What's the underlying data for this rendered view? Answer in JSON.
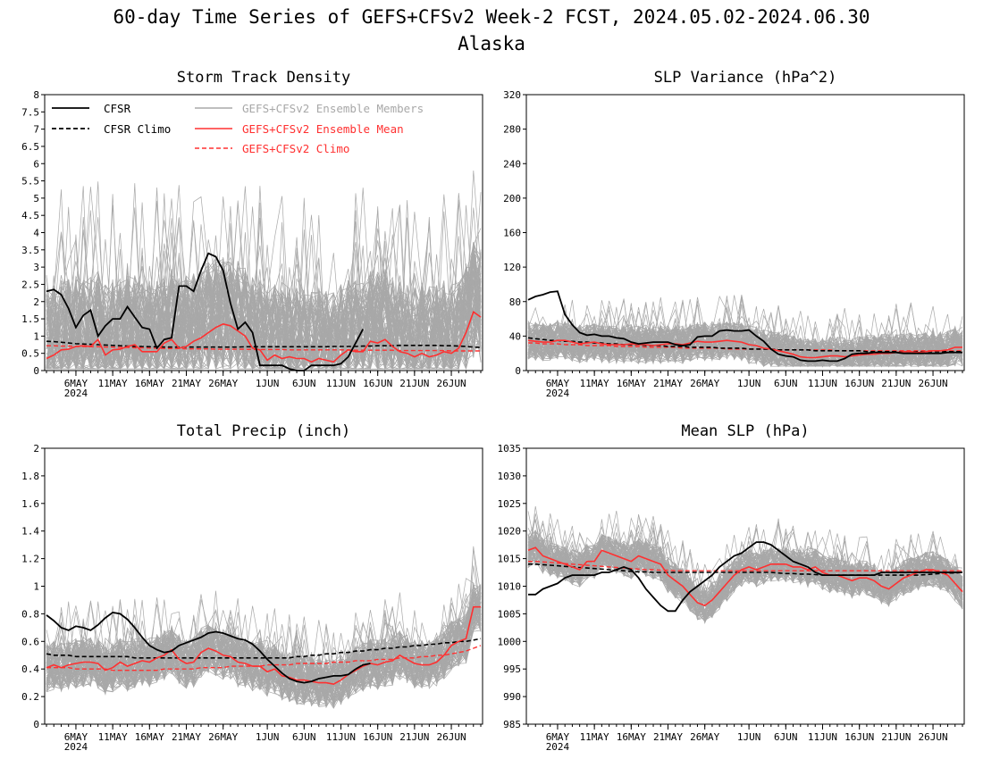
{
  "figure": {
    "title": "60-day Time Series of GEFS+CFSv2 Week-2 FCST, 2024.05.02-2024.06.30",
    "subtitle": "Alaska"
  },
  "legend": {
    "cfsr": "CFSR",
    "cfsr_climo": "CFSR Climo",
    "members": "GEFS+CFSv2 Ensemble Members",
    "mean": "GEFS+CFSv2 Ensemble Mean",
    "climo": "GEFS+CFSv2 Climo"
  },
  "colors": {
    "cfsr": "#000000",
    "members": "#a8a8a8",
    "mean": "#ff3030",
    "axis": "#000000"
  },
  "x_axis": {
    "start_day": 1,
    "end_day": 60,
    "tick_labels": [
      "6MAY",
      "11MAY",
      "16MAY",
      "21MAY",
      "26MAY",
      "1JUN",
      "6JUN",
      "11JUN",
      "16JUN",
      "21JUN",
      "26JUN"
    ],
    "tick_days": [
      5,
      10,
      15,
      20,
      25,
      31,
      36,
      41,
      46,
      51,
      56
    ],
    "year_label": "2024"
  },
  "chart_data": [
    {
      "type": "line",
      "title": "Storm Track Density",
      "ylim": [
        0,
        8
      ],
      "yticks": [
        "0",
        "0.5",
        "1",
        "1.5",
        "2",
        "2.5",
        "3",
        "3.5",
        "4",
        "4.5",
        "5",
        "5.5",
        "6",
        "6.5",
        "7",
        "7.5",
        "8"
      ],
      "legend": true,
      "cfsr_x": [
        1,
        2,
        3,
        4,
        5,
        6,
        7,
        8,
        9,
        10,
        11,
        12,
        13,
        14,
        15,
        16,
        17,
        18,
        19,
        20,
        21,
        22,
        23,
        24,
        25,
        26,
        27,
        28,
        29,
        30,
        31,
        32,
        33,
        34,
        35,
        36,
        37,
        38,
        39,
        40,
        41,
        42,
        43,
        44
      ],
      "cfsr": [
        2.3,
        2.35,
        2.2,
        1.8,
        1.25,
        1.6,
        1.75,
        1.0,
        1.3,
        1.5,
        1.5,
        1.85,
        1.55,
        1.25,
        1.2,
        0.65,
        0.9,
        0.95,
        2.45,
        2.45,
        2.3,
        2.9,
        3.4,
        3.3,
        2.9,
        1.95,
        1.2,
        1.4,
        1.1,
        0.15,
        0.15,
        0.15,
        0.15,
        0.05,
        0.0,
        0.0,
        0.15,
        0.15,
        0.15,
        0.15,
        0.2,
        0.4,
        0.8,
        1.2
      ],
      "mean": [
        0.35,
        0.45,
        0.6,
        0.62,
        0.7,
        0.72,
        0.7,
        0.9,
        0.45,
        0.6,
        0.62,
        0.7,
        0.75,
        0.55,
        0.55,
        0.55,
        0.8,
        0.9,
        0.65,
        0.7,
        0.85,
        0.95,
        1.1,
        1.25,
        1.35,
        1.3,
        1.15,
        1.0,
        0.65,
        0.6,
        0.3,
        0.45,
        0.35,
        0.4,
        0.35,
        0.35,
        0.25,
        0.35,
        0.3,
        0.25,
        0.45,
        0.6,
        0.55,
        0.55,
        0.85,
        0.8,
        0.9,
        0.7,
        0.55,
        0.5,
        0.4,
        0.5,
        0.4,
        0.45,
        0.55,
        0.5,
        0.65,
        1.1,
        1.7,
        1.55
      ],
      "cfsr_climo": [
        0.85,
        0.84,
        0.82,
        0.8,
        0.78,
        0.77,
        0.76,
        0.75,
        0.74,
        0.73,
        0.72,
        0.71,
        0.7,
        0.7,
        0.69,
        0.69,
        0.68,
        0.68,
        0.68,
        0.68,
        0.68,
        0.68,
        0.68,
        0.68,
        0.68,
        0.68,
        0.68,
        0.69,
        0.69,
        0.69,
        0.69,
        0.69,
        0.69,
        0.69,
        0.69,
        0.69,
        0.69,
        0.69,
        0.69,
        0.7,
        0.7,
        0.7,
        0.7,
        0.71,
        0.71,
        0.72,
        0.72,
        0.72,
        0.73,
        0.73,
        0.73,
        0.73,
        0.73,
        0.73,
        0.72,
        0.72,
        0.71,
        0.7,
        0.68,
        0.67
      ],
      "climo": [
        0.72,
        0.72,
        0.71,
        0.71,
        0.7,
        0.7,
        0.69,
        0.69,
        0.68,
        0.68,
        0.67,
        0.67,
        0.66,
        0.66,
        0.65,
        0.65,
        0.64,
        0.64,
        0.64,
        0.63,
        0.63,
        0.63,
        0.63,
        0.62,
        0.62,
        0.62,
        0.62,
        0.62,
        0.61,
        0.61,
        0.61,
        0.61,
        0.61,
        0.6,
        0.6,
        0.6,
        0.6,
        0.6,
        0.6,
        0.6,
        0.6,
        0.6,
        0.59,
        0.59,
        0.59,
        0.59,
        0.59,
        0.59,
        0.58,
        0.58,
        0.58,
        0.58,
        0.58,
        0.58,
        0.58,
        0.57,
        0.57,
        0.57,
        0.57,
        0.57
      ],
      "member_center_offset": 0.35,
      "member_spread": 1.7,
      "member_floor": 0.05,
      "member_max": 5.8
    },
    {
      "type": "line",
      "title": "SLP Variance (hPa^2)",
      "ylim": [
        0,
        320
      ],
      "yticks": [
        "0",
        "40",
        "80",
        "120",
        "160",
        "200",
        "240",
        "280",
        "320"
      ],
      "legend": false,
      "cfsr_x": [
        1,
        2,
        3,
        4,
        5,
        6,
        7,
        8,
        9,
        10,
        11,
        12,
        13,
        14,
        15,
        16,
        17,
        18,
        19,
        20,
        21,
        22,
        23,
        24,
        25,
        26,
        27,
        28,
        29,
        30,
        31,
        32,
        33,
        34,
        35,
        36,
        37,
        38,
        39,
        40,
        41,
        42,
        43,
        44,
        45,
        46,
        47,
        48,
        49,
        50,
        51,
        52,
        53,
        54,
        55,
        56,
        57,
        58,
        59,
        60
      ],
      "cfsr": [
        82,
        86,
        88,
        91,
        92,
        65,
        53,
        44,
        41,
        42,
        40,
        40,
        38,
        37,
        33,
        31,
        32,
        33,
        33,
        33,
        30,
        29,
        30,
        39,
        40,
        40,
        46,
        47,
        46,
        46,
        47,
        40,
        34,
        25,
        19,
        17,
        16,
        12,
        11,
        11,
        12,
        11,
        11,
        14,
        19,
        20,
        20,
        21,
        21,
        21,
        21,
        20,
        20,
        20,
        20,
        20,
        20,
        21,
        21,
        21
      ],
      "mean": [
        35,
        34,
        33,
        33,
        35,
        35,
        33,
        31,
        32,
        33,
        31,
        30,
        30,
        30,
        31,
        30,
        30,
        29,
        30,
        31,
        31,
        30,
        32,
        34,
        33,
        33,
        34,
        35,
        34,
        33,
        30,
        29,
        26,
        25,
        23,
        21,
        19,
        16,
        15,
        15,
        16,
        17,
        17,
        16,
        17,
        18,
        19,
        19,
        20,
        20,
        21,
        22,
        22,
        21,
        22,
        23,
        23,
        24,
        27,
        27
      ],
      "cfsr_climo": [
        38,
        37,
        36,
        35,
        35,
        34,
        34,
        33,
        33,
        32,
        32,
        31,
        31,
        30,
        30,
        30,
        29,
        29,
        29,
        28,
        28,
        28,
        27,
        27,
        27,
        27,
        26,
        26,
        26,
        26,
        25,
        25,
        25,
        25,
        24,
        24,
        24,
        24,
        24,
        23,
        23,
        23,
        23,
        23,
        23,
        23,
        22,
        22,
        22,
        22,
        22,
        22,
        22,
        22,
        22,
        22,
        22,
        22,
        22,
        22
      ],
      "climo": [
        32,
        32,
        31,
        31,
        31,
        30,
        30,
        30,
        29,
        29,
        29,
        29,
        28,
        28,
        28,
        28,
        27,
        27,
        27,
        27,
        27,
        26,
        26,
        26,
        26,
        26,
        26,
        25,
        25,
        25,
        25,
        25,
        25,
        25,
        24,
        24,
        24,
        24,
        24,
        24,
        24,
        24,
        23,
        23,
        23,
        23,
        23,
        23,
        23,
        23,
        23,
        23,
        23,
        23,
        23,
        23,
        23,
        23,
        23,
        23
      ],
      "member_center_offset": 0,
      "member_spread": 22,
      "member_floor": 5,
      "member_max": 135
    },
    {
      "type": "line",
      "title": "Total Precip (inch)",
      "ylim": [
        0,
        2
      ],
      "yticks": [
        "0",
        "0.2",
        "0.4",
        "0.6",
        "0.8",
        "1",
        "1.2",
        "1.4",
        "1.6",
        "1.8",
        "2"
      ],
      "legend": false,
      "cfsr_x": [
        1,
        2,
        3,
        4,
        5,
        6,
        7,
        8,
        9,
        10,
        11,
        12,
        13,
        14,
        15,
        16,
        17,
        18,
        19,
        20,
        21,
        22,
        23,
        24,
        25,
        26,
        27,
        28,
        29,
        30,
        31,
        32,
        33,
        34,
        35,
        36,
        37,
        38,
        39,
        40,
        41,
        42,
        43,
        44,
        45
      ],
      "cfsr": [
        0.79,
        0.75,
        0.7,
        0.68,
        0.71,
        0.7,
        0.68,
        0.72,
        0.77,
        0.81,
        0.8,
        0.76,
        0.7,
        0.63,
        0.57,
        0.54,
        0.52,
        0.53,
        0.57,
        0.59,
        0.61,
        0.63,
        0.66,
        0.67,
        0.66,
        0.64,
        0.62,
        0.61,
        0.58,
        0.53,
        0.47,
        0.42,
        0.37,
        0.33,
        0.31,
        0.3,
        0.31,
        0.33,
        0.34,
        0.35,
        0.35,
        0.36,
        0.4,
        0.43,
        0.44
      ],
      "mean": [
        0.41,
        0.43,
        0.41,
        0.43,
        0.44,
        0.45,
        0.45,
        0.44,
        0.39,
        0.41,
        0.45,
        0.42,
        0.44,
        0.46,
        0.45,
        0.48,
        0.5,
        0.54,
        0.47,
        0.44,
        0.45,
        0.52,
        0.55,
        0.53,
        0.5,
        0.49,
        0.45,
        0.44,
        0.42,
        0.42,
        0.38,
        0.4,
        0.35,
        0.34,
        0.32,
        0.32,
        0.31,
        0.3,
        0.3,
        0.29,
        0.32,
        0.36,
        0.39,
        0.42,
        0.44,
        0.43,
        0.45,
        0.46,
        0.5,
        0.47,
        0.44,
        0.43,
        0.43,
        0.45,
        0.5,
        0.57,
        0.6,
        0.62,
        0.85,
        0.85
      ],
      "cfsr_climo": [
        0.51,
        0.5,
        0.5,
        0.5,
        0.49,
        0.49,
        0.49,
        0.49,
        0.49,
        0.49,
        0.49,
        0.49,
        0.48,
        0.48,
        0.48,
        0.48,
        0.48,
        0.48,
        0.48,
        0.48,
        0.48,
        0.48,
        0.48,
        0.48,
        0.48,
        0.48,
        0.48,
        0.48,
        0.48,
        0.48,
        0.48,
        0.48,
        0.48,
        0.48,
        0.49,
        0.49,
        0.5,
        0.5,
        0.51,
        0.51,
        0.52,
        0.52,
        0.53,
        0.53,
        0.54,
        0.54,
        0.55,
        0.55,
        0.56,
        0.56,
        0.57,
        0.57,
        0.58,
        0.58,
        0.59,
        0.59,
        0.6,
        0.6,
        0.61,
        0.62
      ],
      "climo": [
        0.41,
        0.41,
        0.41,
        0.41,
        0.4,
        0.4,
        0.4,
        0.4,
        0.4,
        0.39,
        0.39,
        0.39,
        0.39,
        0.39,
        0.39,
        0.39,
        0.4,
        0.4,
        0.4,
        0.4,
        0.4,
        0.41,
        0.41,
        0.41,
        0.41,
        0.42,
        0.42,
        0.42,
        0.42,
        0.42,
        0.43,
        0.43,
        0.43,
        0.43,
        0.44,
        0.44,
        0.44,
        0.44,
        0.44,
        0.45,
        0.45,
        0.45,
        0.46,
        0.46,
        0.46,
        0.47,
        0.47,
        0.47,
        0.48,
        0.48,
        0.48,
        0.49,
        0.49,
        0.5,
        0.5,
        0.51,
        0.52,
        0.53,
        0.55,
        0.57
      ],
      "member_center_offset": 0,
      "member_spread": 0.18,
      "member_floor": 0.02,
      "member_max": 1.42
    },
    {
      "type": "line",
      "title": "Mean SLP (hPa)",
      "ylim": [
        985,
        1035
      ],
      "yticks": [
        "985",
        "990",
        "995",
        "1000",
        "1005",
        "1010",
        "1015",
        "1020",
        "1025",
        "1030",
        "1035"
      ],
      "legend": false,
      "cfsr_x": [
        1,
        2,
        3,
        4,
        5,
        6,
        7,
        8,
        9,
        10,
        11,
        12,
        13,
        14,
        15,
        16,
        17,
        18,
        19,
        20,
        21,
        22,
        23,
        24,
        25,
        26,
        27,
        28,
        29,
        30,
        31,
        32,
        33,
        34,
        35,
        36,
        37,
        38,
        39,
        40,
        41,
        42,
        43,
        44,
        45,
        46,
        47,
        48,
        49,
        50,
        51,
        52,
        53,
        54,
        55,
        56,
        57,
        58,
        59,
        60
      ],
      "cfsr": [
        1008.5,
        1008.5,
        1009.5,
        1010,
        1010.5,
        1011.5,
        1012,
        1012,
        1012,
        1012,
        1012.5,
        1012.5,
        1013,
        1013.5,
        1013,
        1011.5,
        1009.5,
        1008,
        1006.5,
        1005.5,
        1005.5,
        1007.5,
        1009,
        1010,
        1011,
        1012,
        1013.5,
        1014.5,
        1015.5,
        1016,
        1017,
        1018,
        1018,
        1017.5,
        1016.5,
        1015.5,
        1014.5,
        1014,
        1013.5,
        1012.5,
        1012,
        1012,
        1012,
        1012,
        1012,
        1012,
        1012,
        1012,
        1012.5,
        1012.5,
        1012.5,
        1012.5,
        1012.5,
        1012.5,
        1012.5,
        1012.5,
        1012.5,
        1012.5,
        1012.5,
        1012.5
      ],
      "mean": [
        1016.5,
        1017,
        1015.5,
        1015,
        1014.5,
        1014,
        1013.5,
        1013,
        1014.5,
        1014.5,
        1016.5,
        1016,
        1015.5,
        1015,
        1014.5,
        1015.5,
        1015,
        1014.5,
        1014,
        1012,
        1011,
        1010,
        1008.5,
        1007,
        1006.5,
        1007.5,
        1009,
        1010.5,
        1012,
        1013,
        1013.5,
        1013,
        1013.5,
        1014,
        1014,
        1014,
        1013.5,
        1013.5,
        1013,
        1013.5,
        1012.5,
        1012,
        1012,
        1011.5,
        1011,
        1011.5,
        1011.5,
        1011,
        1010,
        1009.5,
        1010.5,
        1011.5,
        1012,
        1012.5,
        1013,
        1013,
        1012.5,
        1012,
        1010.5,
        1009
      ],
      "cfsr_climo": [
        1014,
        1014,
        1013.9,
        1013.8,
        1013.7,
        1013.6,
        1013.5,
        1013.4,
        1013.3,
        1013.2,
        1013.1,
        1013,
        1012.9,
        1012.8,
        1012.7,
        1012.6,
        1012.6,
        1012.5,
        1012.5,
        1012.5,
        1012.5,
        1012.5,
        1012.5,
        1012.5,
        1012.5,
        1012.5,
        1012.5,
        1012.5,
        1012.5,
        1012.5,
        1012.5,
        1012.5,
        1012.5,
        1012.5,
        1012.4,
        1012.3,
        1012.3,
        1012.2,
        1012.2,
        1012.1,
        1012,
        1012,
        1012,
        1012,
        1012,
        1012,
        1012,
        1012,
        1012,
        1012,
        1012,
        1012,
        1012,
        1012,
        1012.1,
        1012.2,
        1012.3,
        1012.4,
        1012.4,
        1012.5
      ],
      "climo": [
        1014.5,
        1014.5,
        1014.4,
        1014.3,
        1014.2,
        1014.1,
        1014,
        1013.9,
        1013.8,
        1013.7,
        1013.6,
        1013.5,
        1013.4,
        1013.3,
        1013.2,
        1013.1,
        1013,
        1013,
        1012.9,
        1012.9,
        1012.8,
        1012.8,
        1012.8,
        1012.8,
        1012.8,
        1012.8,
        1012.8,
        1012.8,
        1012.8,
        1012.8,
        1012.8,
        1012.8,
        1012.8,
        1012.8,
        1012.8,
        1012.8,
        1012.8,
        1012.8,
        1012.8,
        1012.8,
        1012.8,
        1012.8,
        1012.8,
        1012.8,
        1012.8,
        1012.8,
        1012.8,
        1012.8,
        1012.8,
        1012.8,
        1012.8,
        1012.8,
        1012.8,
        1012.8,
        1012.8,
        1012.8,
        1012.8,
        1012.8,
        1012.8,
        1012.8
      ],
      "member_center_offset": 0,
      "member_spread": 3.2,
      "member_floor": 998,
      "member_max": 1027
    }
  ]
}
